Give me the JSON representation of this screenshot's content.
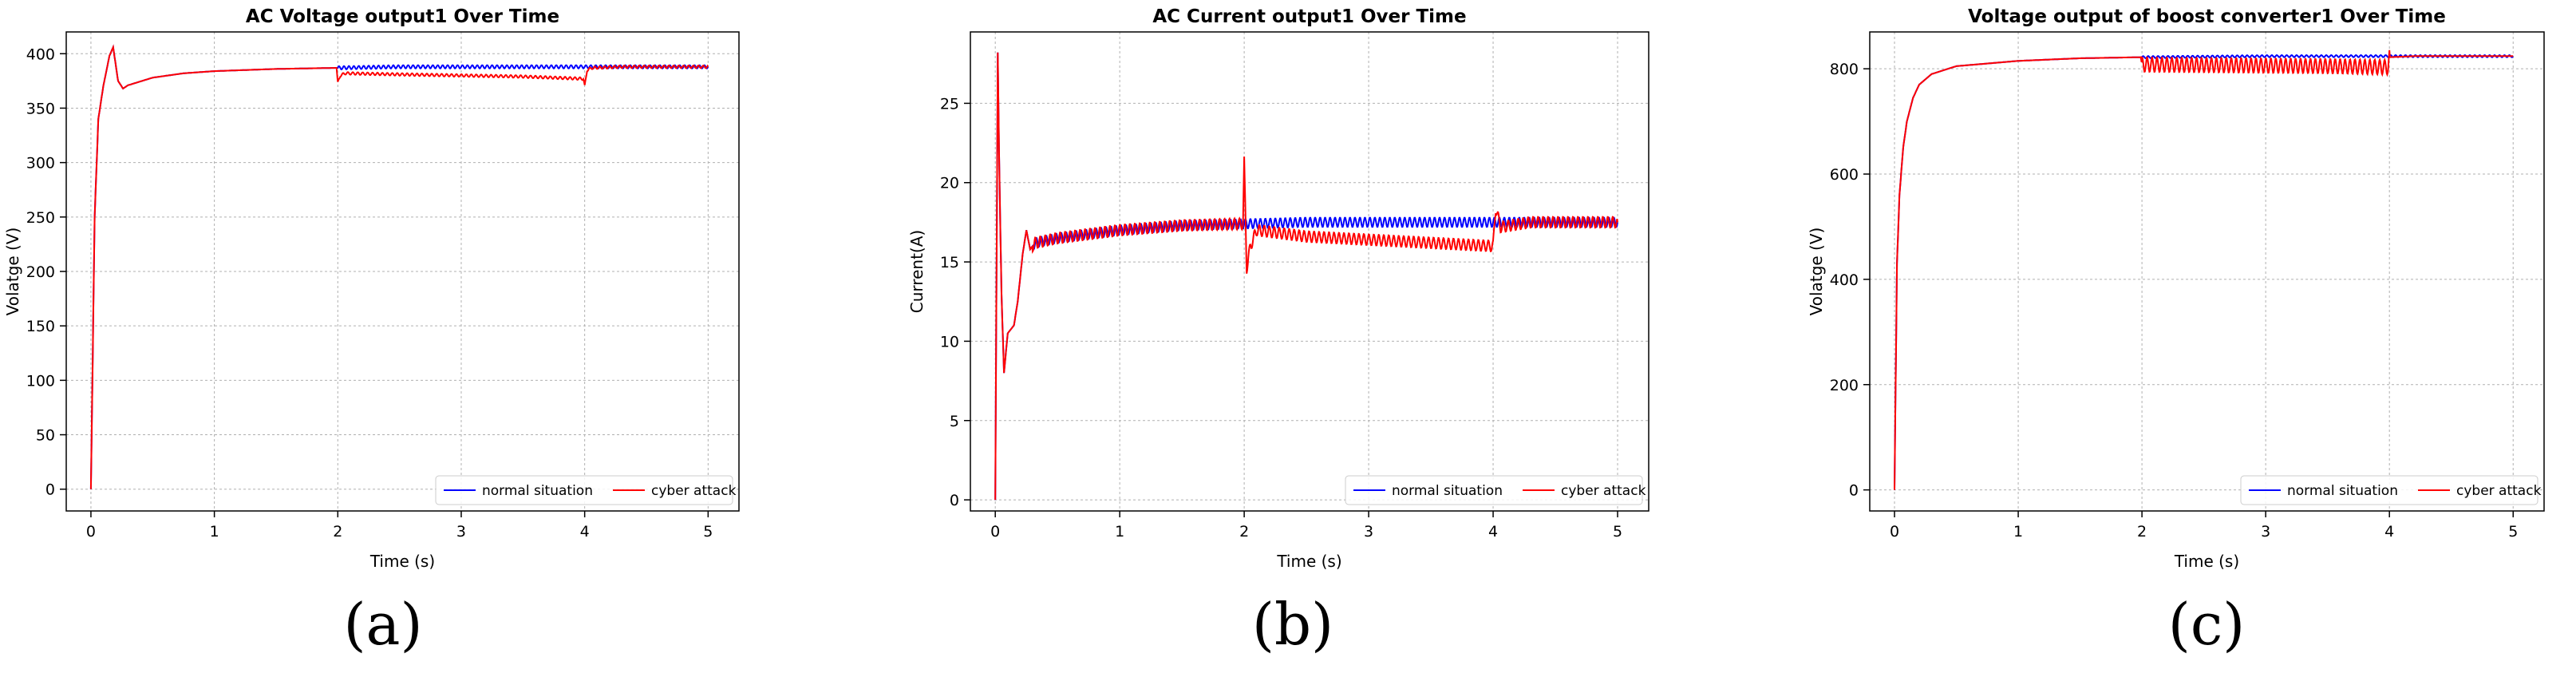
{
  "colors": {
    "normal": "#0000ff",
    "attack": "#ff0000",
    "grid": "#b0b0b0",
    "axis": "#000000"
  },
  "legend": {
    "normal": "normal situation",
    "attack": "cyber attack",
    "placement": "lower-right"
  },
  "captions": [
    "(a)",
    "(b)",
    "(c)"
  ],
  "chart_data": [
    {
      "type": "line",
      "title": "AC Voltage output1  Over Time",
      "xlabel": "Time (s)",
      "ylabel": "Volatge (V)",
      "xlim": [
        -0.2,
        5.25
      ],
      "ylim": [
        -20,
        420
      ],
      "xticks": [
        0,
        1,
        2,
        3,
        4,
        5
      ],
      "yticks": [
        0,
        50,
        100,
        150,
        200,
        250,
        300,
        350,
        400
      ],
      "grid": true,
      "series": [
        {
          "name": "normal situation",
          "color": "#0000ff",
          "x": [
            0,
            0.03,
            0.06,
            0.1,
            0.15,
            0.18,
            0.22,
            0.26,
            0.3,
            0.5,
            0.75,
            1.0,
            1.5,
            2.0,
            2.5,
            3.0,
            3.5,
            4.0,
            4.5,
            5.0
          ],
          "y": [
            0,
            250,
            340,
            370,
            398,
            406,
            375,
            368,
            371,
            378,
            382,
            384,
            386,
            387,
            388,
            388,
            388,
            388,
            388,
            388
          ],
          "ripple": {
            "from": 2.0,
            "to": 5.0,
            "amp": 1.5
          }
        },
        {
          "name": "cyber attack",
          "color": "#ff0000",
          "x": [
            0,
            0.03,
            0.06,
            0.1,
            0.15,
            0.18,
            0.22,
            0.26,
            0.3,
            0.5,
            0.75,
            1.0,
            1.5,
            1.99,
            2.0,
            2.02,
            2.06,
            2.5,
            3.0,
            3.5,
            3.99,
            4.0,
            4.02,
            4.06,
            4.3,
            5.0
          ],
          "y": [
            0,
            250,
            340,
            370,
            398,
            406,
            375,
            368,
            371,
            378,
            382,
            384,
            386,
            387,
            373,
            380,
            382,
            381,
            380,
            379,
            377,
            370,
            385,
            387,
            388,
            388
          ],
          "ripple": {
            "from": 2.0,
            "to": 5.0,
            "amp": 1.2
          }
        }
      ]
    },
    {
      "type": "line",
      "title": "AC Current output1 Over Time",
      "xlabel": "Time (s)",
      "ylabel": "Current(A)",
      "xlim": [
        -0.2,
        5.25
      ],
      "ylim": [
        -0.7,
        29.5
      ],
      "xticks": [
        0,
        1,
        2,
        3,
        4,
        5
      ],
      "yticks": [
        0,
        5,
        10,
        15,
        20,
        25
      ],
      "grid": true,
      "series": [
        {
          "name": "normal situation",
          "color": "#0000ff",
          "x": [
            0,
            0.02,
            0.03,
            0.05,
            0.07,
            0.1,
            0.15,
            0.18,
            0.22,
            0.25,
            0.28,
            0.32,
            0.5,
            1.0,
            1.5,
            2.0,
            2.5,
            3.0,
            3.5,
            4.0,
            4.5,
            5.0
          ],
          "y": [
            0,
            28.2,
            22,
            13,
            8,
            10.5,
            11,
            12.5,
            15.5,
            17,
            15.8,
            16.2,
            16.5,
            17,
            17.3,
            17.4,
            17.5,
            17.5,
            17.5,
            17.5,
            17.5,
            17.5
          ],
          "ripple": {
            "from": 0.3,
            "to": 5.0,
            "amp": 0.3
          }
        },
        {
          "name": "cyber attack",
          "color": "#ff0000",
          "x": [
            0,
            0.02,
            0.03,
            0.05,
            0.07,
            0.1,
            0.15,
            0.18,
            0.22,
            0.25,
            0.28,
            0.32,
            0.5,
            1.0,
            1.5,
            1.99,
            2.0,
            2.02,
            2.05,
            2.1,
            2.5,
            3.0,
            3.5,
            4.0,
            4.02,
            4.06,
            4.3,
            5.0
          ],
          "y": [
            0,
            28.2,
            22,
            13,
            8,
            10.5,
            11,
            12.5,
            15.5,
            17,
            15.8,
            16.2,
            16.5,
            17,
            17.3,
            17.4,
            21.3,
            14.6,
            16,
            17,
            16.6,
            16.4,
            16.2,
            16.0,
            18.4,
            17.2,
            17.5,
            17.5
          ],
          "ripple": {
            "from": 0.3,
            "to": 5.0,
            "amp": 0.35
          }
        }
      ]
    },
    {
      "type": "line",
      "title": "Voltage output of boost converter1 Over Time",
      "xlabel": "Time (s)",
      "ylabel": "Volatge (V)",
      "xlim": [
        -0.2,
        5.25
      ],
      "ylim": [
        -40,
        870
      ],
      "xticks": [
        0,
        1,
        2,
        3,
        4,
        5
      ],
      "yticks": [
        0,
        200,
        400,
        600,
        800
      ],
      "grid": true,
      "series": [
        {
          "name": "normal situation",
          "color": "#0000ff",
          "x": [
            0,
            0.02,
            0.04,
            0.07,
            0.1,
            0.15,
            0.2,
            0.3,
            0.5,
            1.0,
            1.5,
            2.0,
            2.5,
            3.0,
            3.5,
            4.0,
            4.5,
            5.0
          ],
          "y": [
            0,
            430,
            560,
            650,
            700,
            745,
            770,
            790,
            805,
            815,
            820,
            822,
            823,
            824,
            824,
            824,
            824,
            824
          ],
          "ripple": {
            "from": 2.0,
            "to": 5.0,
            "amp": 2
          }
        },
        {
          "name": "cyber attack",
          "color": "#ff0000",
          "x": [
            0,
            0.02,
            0.04,
            0.07,
            0.1,
            0.15,
            0.2,
            0.3,
            0.5,
            1.0,
            1.5,
            1.99,
            2.0,
            2.5,
            3.0,
            3.5,
            3.99,
            4.0,
            4.2,
            5.0
          ],
          "y": [
            0,
            430,
            560,
            650,
            700,
            745,
            770,
            790,
            805,
            815,
            820,
            822,
            808,
            807,
            806,
            805,
            803,
            822,
            824,
            824
          ],
          "ripple": {
            "from": 2.0,
            "to": 4.0,
            "amp": 14
          }
        }
      ]
    }
  ]
}
